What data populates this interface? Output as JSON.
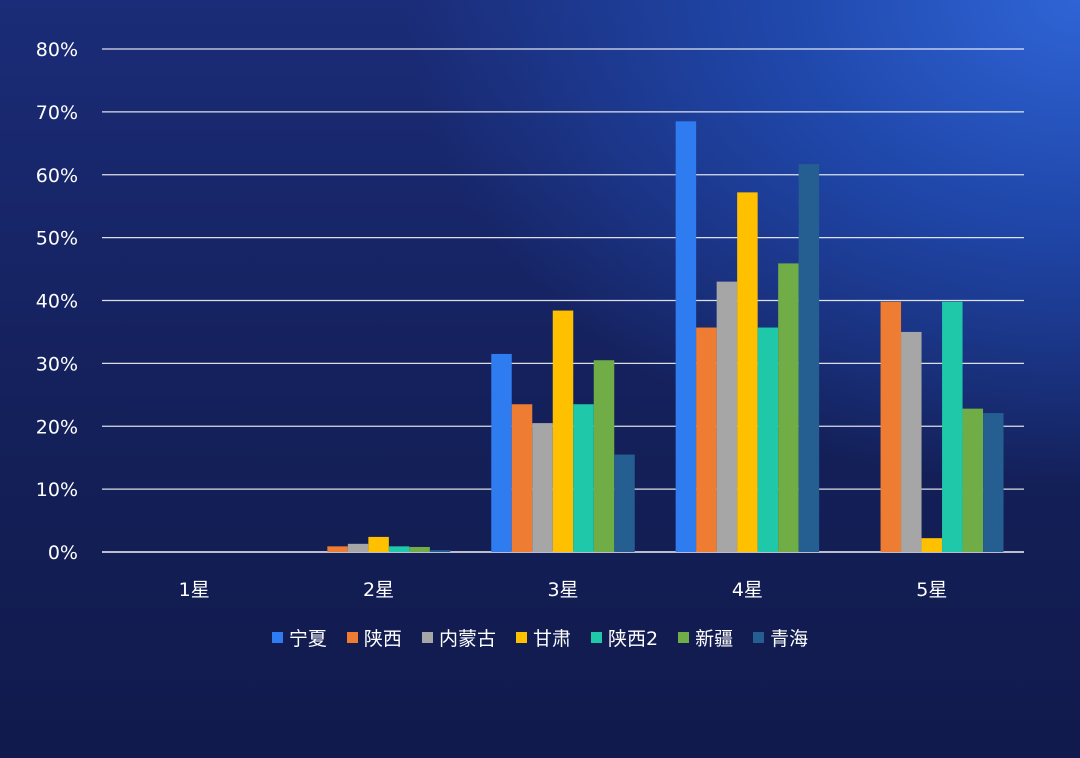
{
  "chart_data": {
    "type": "bar",
    "categories": [
      "1星",
      "2星",
      "3星",
      "4星",
      "5星"
    ],
    "yticks": [
      "0%",
      "10%",
      "20%",
      "30%",
      "40%",
      "50%",
      "60%",
      "70%",
      "80%"
    ],
    "ylim": [
      0,
      80
    ],
    "grid": true,
    "legend_position": "bottom",
    "series": [
      {
        "name": "宁夏",
        "color": "#2f7cf0",
        "values": [
          0,
          0,
          31.5,
          68.5,
          0
        ]
      },
      {
        "name": "陕西",
        "color": "#ee7d33",
        "values": [
          0,
          0.9,
          23.5,
          35.7,
          39.8
        ]
      },
      {
        "name": "内蒙古",
        "color": "#a6a6a6",
        "values": [
          0,
          1.3,
          20.5,
          43.0,
          35.0
        ]
      },
      {
        "name": "甘肃",
        "color": "#ffc000",
        "values": [
          0,
          2.4,
          38.4,
          57.2,
          2.2
        ]
      },
      {
        "name": "陕西2",
        "color": "#1fc8a8",
        "values": [
          0,
          0.9,
          23.5,
          35.7,
          39.8
        ]
      },
      {
        "name": "新疆",
        "color": "#70ad47",
        "values": [
          0,
          0.8,
          30.5,
          45.9,
          22.8
        ]
      },
      {
        "name": "青海",
        "color": "#255e91",
        "values": [
          0,
          0.3,
          15.5,
          61.7,
          22.1
        ]
      }
    ]
  }
}
